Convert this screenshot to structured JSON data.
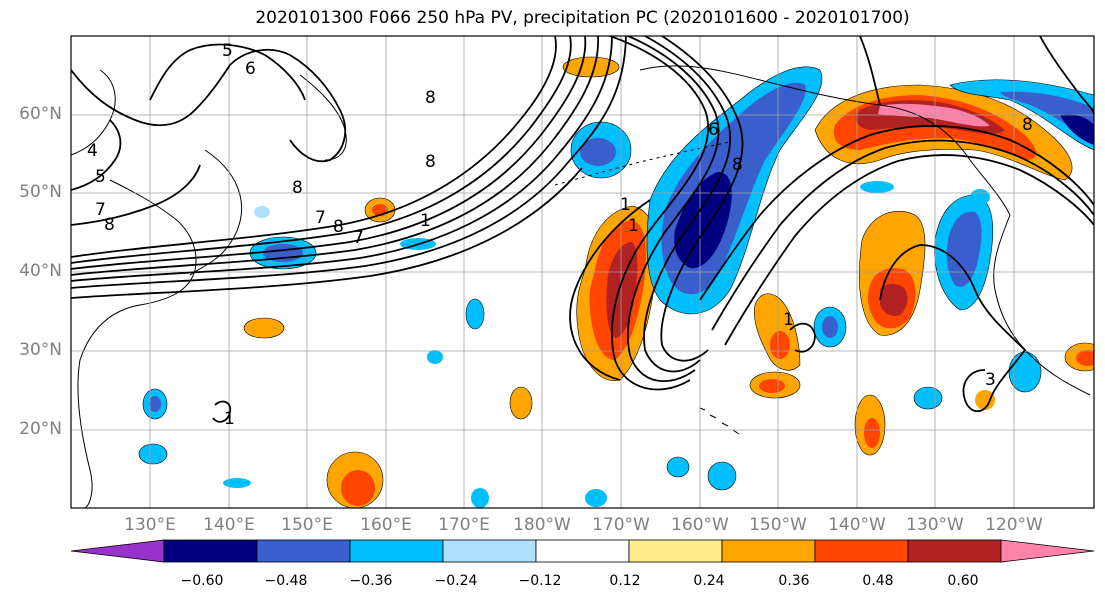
{
  "title": "2020101300 F066 250 hPa PV, precipitation PC (2020101600 - 2020101700)",
  "lat_labels": [
    "60°N",
    "50°N",
    "40°N",
    "30°N",
    "20°N"
  ],
  "lon_labels": [
    "130°E",
    "140°E",
    "150°E",
    "160°E",
    "170°E",
    "180°W",
    "170°W",
    "160°W",
    "150°W",
    "140°W",
    "130°W",
    "120°W"
  ],
  "colorbar": {
    "ticks": [
      "−0.60",
      "−0.48",
      "−0.36",
      "−0.24",
      "−0.12",
      "0.12",
      "0.24",
      "0.36",
      "0.48",
      "0.60"
    ],
    "colors": [
      "#9932cc",
      "#000080",
      "#3a5fcd",
      "#00bfff",
      "#b0e0ff",
      "#ffffff",
      "#ffec8b",
      "#ffa500",
      "#ff4500",
      "#b22222",
      "#ff82ab"
    ]
  },
  "contour_labels": [
    "5",
    "6",
    "4",
    "5",
    "7",
    "8",
    "8",
    "7",
    "8",
    "7",
    "8",
    "1",
    "1",
    "1",
    "1",
    "3",
    "6",
    "8",
    "8",
    "8",
    "1"
  ],
  "palette": {
    "neg_strong": "#000080",
    "neg_mid": "#3a5fcd",
    "neg_weak": "#00bfff",
    "neg_faint": "#b0e0ff",
    "pos_faint": "#ffec8b",
    "pos_weak": "#ffa500",
    "pos_mid": "#ff4500",
    "pos_strong": "#b22222",
    "pos_max": "#ff82ab"
  }
}
